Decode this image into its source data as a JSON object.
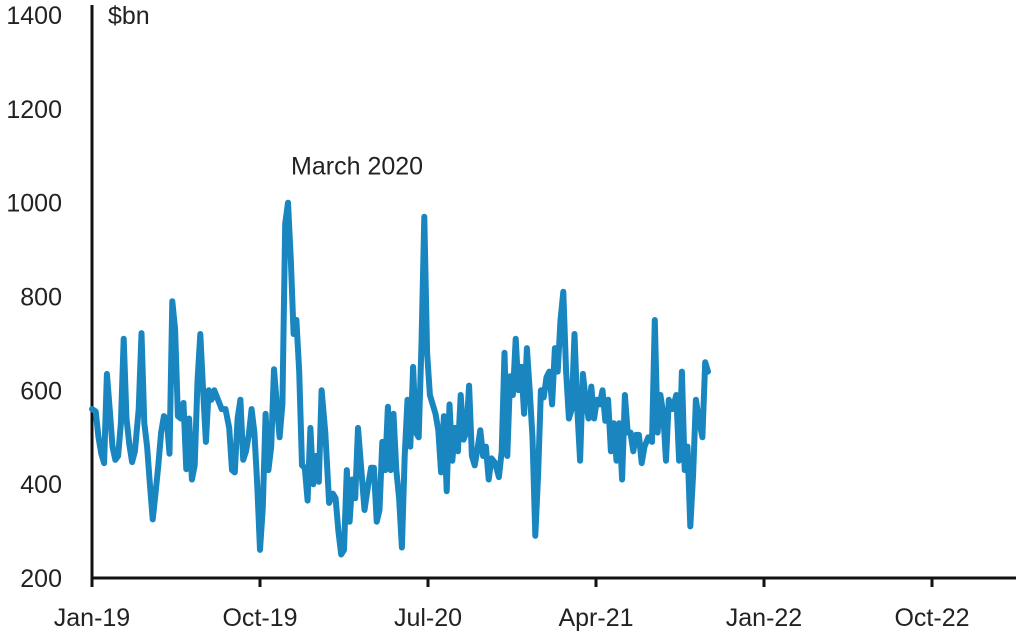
{
  "chart_data": {
    "type": "line",
    "title": "",
    "xlabel": "",
    "ylabel": "$bn",
    "ylim": [
      200,
      1400
    ],
    "yticks": [
      200,
      400,
      600,
      800,
      1000,
      1200,
      1400
    ],
    "xticks": [
      "Jan-19",
      "Oct-19",
      "Jul-20",
      "Apr-21",
      "Jan-22",
      "Oct-22"
    ],
    "xtick_months": [
      0,
      9,
      18,
      27,
      36,
      45
    ],
    "x_range_months": [
      0,
      49.5
    ],
    "grid": false,
    "legend": "none",
    "line_color": "#1a86c0",
    "annotations": [
      {
        "text": "March 2020",
        "month": 14.2,
        "y": 1000
      }
    ],
    "series": [
      {
        "name": "",
        "points": [
          [
            0.0,
            560
          ],
          [
            0.2,
            555
          ],
          [
            0.35,
            500
          ],
          [
            0.5,
            465
          ],
          [
            0.65,
            445
          ],
          [
            0.8,
            635
          ],
          [
            0.95,
            560
          ],
          [
            1.1,
            480
          ],
          [
            1.25,
            452
          ],
          [
            1.4,
            460
          ],
          [
            1.55,
            530
          ],
          [
            1.7,
            710
          ],
          [
            1.85,
            540
          ],
          [
            2.0,
            485
          ],
          [
            2.15,
            447
          ],
          [
            2.3,
            470
          ],
          [
            2.5,
            560
          ],
          [
            2.65,
            722
          ],
          [
            2.8,
            530
          ],
          [
            2.95,
            480
          ],
          [
            3.1,
            400
          ],
          [
            3.25,
            325
          ],
          [
            3.4,
            380
          ],
          [
            3.55,
            440
          ],
          [
            3.7,
            510
          ],
          [
            3.85,
            545
          ],
          [
            4.0,
            540
          ],
          [
            4.15,
            465
          ],
          [
            4.3,
            790
          ],
          [
            4.45,
            730
          ],
          [
            4.6,
            545
          ],
          [
            4.75,
            540
          ],
          [
            4.9,
            573
          ],
          [
            5.05,
            432
          ],
          [
            5.2,
            540
          ],
          [
            5.35,
            410
          ],
          [
            5.5,
            440
          ],
          [
            5.65,
            620
          ],
          [
            5.8,
            720
          ],
          [
            5.95,
            600
          ],
          [
            6.1,
            490
          ],
          [
            6.25,
            600
          ],
          [
            6.4,
            580
          ],
          [
            6.55,
            600
          ],
          [
            6.75,
            580
          ],
          [
            6.95,
            560
          ],
          [
            7.15,
            560
          ],
          [
            7.35,
            520
          ],
          [
            7.5,
            430
          ],
          [
            7.65,
            425
          ],
          [
            7.8,
            540
          ],
          [
            7.95,
            580
          ],
          [
            8.1,
            452
          ],
          [
            8.25,
            470
          ],
          [
            8.4,
            505
          ],
          [
            8.55,
            560
          ],
          [
            8.7,
            510
          ],
          [
            8.85,
            400
          ],
          [
            9.0,
            260
          ],
          [
            9.15,
            350
          ],
          [
            9.3,
            550
          ],
          [
            9.45,
            430
          ],
          [
            9.6,
            480
          ],
          [
            9.75,
            645
          ],
          [
            9.9,
            570
          ],
          [
            10.05,
            500
          ],
          [
            10.2,
            570
          ],
          [
            10.35,
            955
          ],
          [
            10.5,
            1000
          ],
          [
            10.65,
            880
          ],
          [
            10.8,
            720
          ],
          [
            10.95,
            750
          ],
          [
            11.1,
            640
          ],
          [
            11.25,
            440
          ],
          [
            11.4,
            435
          ],
          [
            11.55,
            365
          ],
          [
            11.7,
            520
          ],
          [
            11.85,
            400
          ],
          [
            12.0,
            460
          ],
          [
            12.15,
            405
          ],
          [
            12.3,
            600
          ],
          [
            12.5,
            510
          ],
          [
            12.7,
            360
          ],
          [
            12.9,
            380
          ],
          [
            13.05,
            370
          ],
          [
            13.2,
            300
          ],
          [
            13.35,
            250
          ],
          [
            13.5,
            260
          ],
          [
            13.65,
            430
          ],
          [
            13.8,
            320
          ],
          [
            13.95,
            410
          ],
          [
            14.1,
            370
          ],
          [
            14.25,
            520
          ],
          [
            14.4,
            445
          ],
          [
            14.6,
            345
          ],
          [
            14.8,
            400
          ],
          [
            14.95,
            435
          ],
          [
            15.1,
            435
          ],
          [
            15.25,
            320
          ],
          [
            15.4,
            345
          ],
          [
            15.55,
            490
          ],
          [
            15.7,
            430
          ],
          [
            15.85,
            565
          ],
          [
            16.0,
            430
          ],
          [
            16.15,
            550
          ],
          [
            16.3,
            430
          ],
          [
            16.45,
            370
          ],
          [
            16.6,
            265
          ],
          [
            16.75,
            460
          ],
          [
            16.9,
            580
          ],
          [
            17.05,
            480
          ],
          [
            17.2,
            650
          ],
          [
            17.35,
            510
          ],
          [
            17.5,
            500
          ],
          [
            17.65,
            700
          ],
          [
            17.8,
            970
          ],
          [
            17.95,
            680
          ],
          [
            18.1,
            590
          ],
          [
            18.25,
            570
          ],
          [
            18.4,
            550
          ],
          [
            18.55,
            515
          ],
          [
            18.7,
            425
          ],
          [
            18.85,
            545
          ],
          [
            19.0,
            385
          ],
          [
            19.15,
            570
          ],
          [
            19.3,
            450
          ],
          [
            19.45,
            520
          ],
          [
            19.6,
            470
          ],
          [
            19.75,
            590
          ],
          [
            19.9,
            495
          ],
          [
            20.05,
            510
          ],
          [
            20.2,
            610
          ],
          [
            20.35,
            460
          ],
          [
            20.5,
            440
          ],
          [
            20.65,
            475
          ],
          [
            20.8,
            515
          ],
          [
            20.95,
            460
          ],
          [
            21.1,
            480
          ],
          [
            21.25,
            410
          ],
          [
            21.4,
            455
          ],
          [
            21.6,
            445
          ],
          [
            21.8,
            415
          ],
          [
            21.95,
            470
          ],
          [
            22.1,
            680
          ],
          [
            22.25,
            460
          ],
          [
            22.4,
            630
          ],
          [
            22.55,
            590
          ],
          [
            22.7,
            710
          ],
          [
            22.85,
            600
          ],
          [
            23.0,
            650
          ],
          [
            23.15,
            550
          ],
          [
            23.3,
            690
          ],
          [
            23.45,
            600
          ],
          [
            23.6,
            500
          ],
          [
            23.75,
            290
          ],
          [
            23.9,
            420
          ],
          [
            24.05,
            600
          ],
          [
            24.2,
            585
          ],
          [
            24.35,
            628
          ],
          [
            24.5,
            640
          ],
          [
            24.65,
            570
          ],
          [
            24.8,
            690
          ],
          [
            24.95,
            640
          ],
          [
            25.1,
            750
          ],
          [
            25.25,
            810
          ],
          [
            25.4,
            640
          ],
          [
            25.55,
            540
          ],
          [
            25.7,
            560
          ],
          [
            25.85,
            720
          ],
          [
            26.0,
            560
          ],
          [
            26.15,
            450
          ],
          [
            26.3,
            635
          ],
          [
            26.45,
            580
          ],
          [
            26.6,
            540
          ],
          [
            26.75,
            608
          ],
          [
            26.9,
            540
          ],
          [
            27.05,
            580
          ],
          [
            27.2,
            570
          ],
          [
            27.35,
            600
          ],
          [
            27.5,
            535
          ],
          [
            27.65,
            580
          ],
          [
            27.8,
            470
          ],
          [
            27.95,
            530
          ],
          [
            28.1,
            450
          ],
          [
            28.25,
            530
          ],
          [
            28.4,
            410
          ],
          [
            28.55,
            590
          ],
          [
            28.7,
            510
          ],
          [
            28.85,
            510
          ],
          [
            29.0,
            470
          ],
          [
            29.15,
            505
          ],
          [
            29.3,
            505
          ],
          [
            29.45,
            445
          ],
          [
            29.6,
            480
          ],
          [
            29.8,
            500
          ],
          [
            30.0,
            490
          ],
          [
            30.15,
            750
          ],
          [
            30.3,
            510
          ],
          [
            30.45,
            590
          ],
          [
            30.6,
            550
          ],
          [
            30.75,
            450
          ],
          [
            30.9,
            580
          ],
          [
            31.1,
            560
          ],
          [
            31.3,
            590
          ],
          [
            31.45,
            450
          ],
          [
            31.6,
            640
          ],
          [
            31.75,
            430
          ],
          [
            31.9,
            480
          ],
          [
            32.05,
            310
          ],
          [
            32.2,
            420
          ],
          [
            32.35,
            580
          ],
          [
            32.5,
            540
          ],
          [
            32.7,
            500
          ],
          [
            32.85,
            660
          ],
          [
            33.0,
            640
          ]
        ]
      }
    ]
  }
}
